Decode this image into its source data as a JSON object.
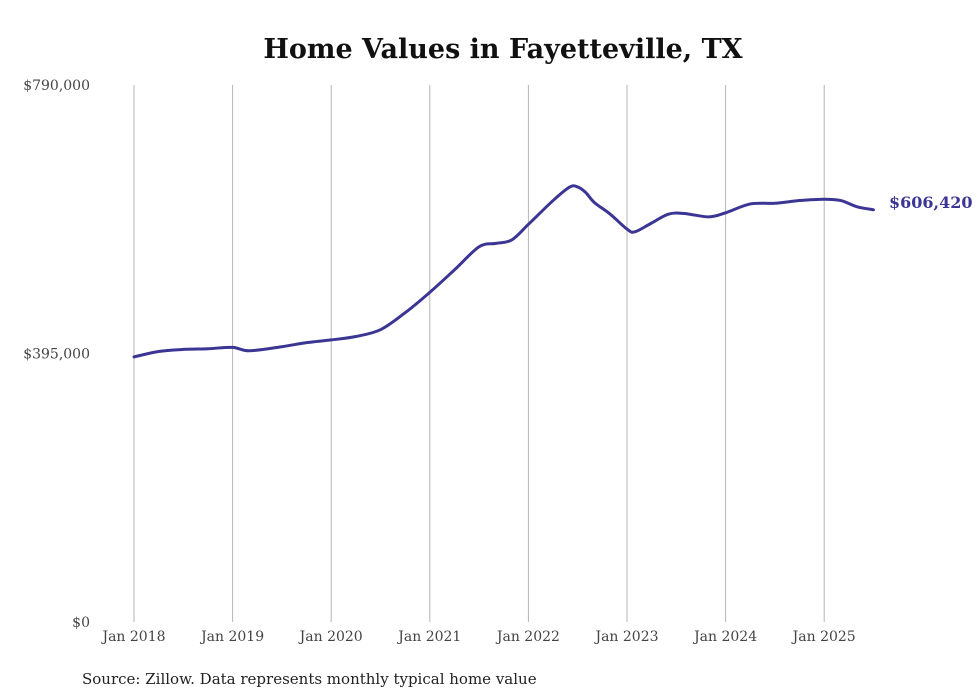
{
  "chart_data": {
    "type": "line",
    "title": "Home Values in Fayetteville, TX",
    "xlabel": "",
    "ylabel": "",
    "ylim": [
      0,
      790000
    ],
    "yticks": [
      {
        "value": 0,
        "label": "$0"
      },
      {
        "value": 395000,
        "label": "$395,000"
      },
      {
        "value": 790000,
        "label": "$790,000"
      }
    ],
    "xticks": [
      {
        "value": 2018,
        "label": "Jan 2018"
      },
      {
        "value": 2019,
        "label": "Jan 2019"
      },
      {
        "value": 2020,
        "label": "Jan 2020"
      },
      {
        "value": 2021,
        "label": "Jan 2021"
      },
      {
        "value": 2022,
        "label": "Jan 2022"
      },
      {
        "value": 2023,
        "label": "Jan 2023"
      },
      {
        "value": 2024,
        "label": "Jan 2024"
      },
      {
        "value": 2025,
        "label": "Jan 2025"
      }
    ],
    "grid": "vertical",
    "color": "#3b3594",
    "series": [
      {
        "name": "Typical home value",
        "x": [
          2018.0,
          2018.25,
          2018.5,
          2018.75,
          2019.0,
          2019.17,
          2019.5,
          2019.75,
          2020.0,
          2020.25,
          2020.5,
          2020.75,
          2021.0,
          2021.25,
          2021.5,
          2021.67,
          2021.83,
          2022.0,
          2022.25,
          2022.42,
          2022.5,
          2022.58,
          2022.67,
          2022.83,
          2023.0,
          2023.08,
          2023.25,
          2023.42,
          2023.58,
          2023.83,
          2024.0,
          2024.25,
          2024.5,
          2024.75,
          2025.0,
          2025.17,
          2025.33,
          2025.5
        ],
        "values": [
          390000,
          398000,
          401000,
          402000,
          404000,
          399000,
          405000,
          411000,
          415000,
          420000,
          430000,
          455000,
          485000,
          518000,
          552000,
          557000,
          562000,
          585000,
          620000,
          640000,
          640000,
          632000,
          617000,
          600000,
          578000,
          574000,
          587000,
          600000,
          601000,
          596000,
          602000,
          615000,
          616000,
          620000,
          622000,
          620000,
          611000,
          606420
        ]
      }
    ],
    "end_label": "$606,420"
  },
  "source": "Source: Zillow. Data represents monthly typical home value"
}
